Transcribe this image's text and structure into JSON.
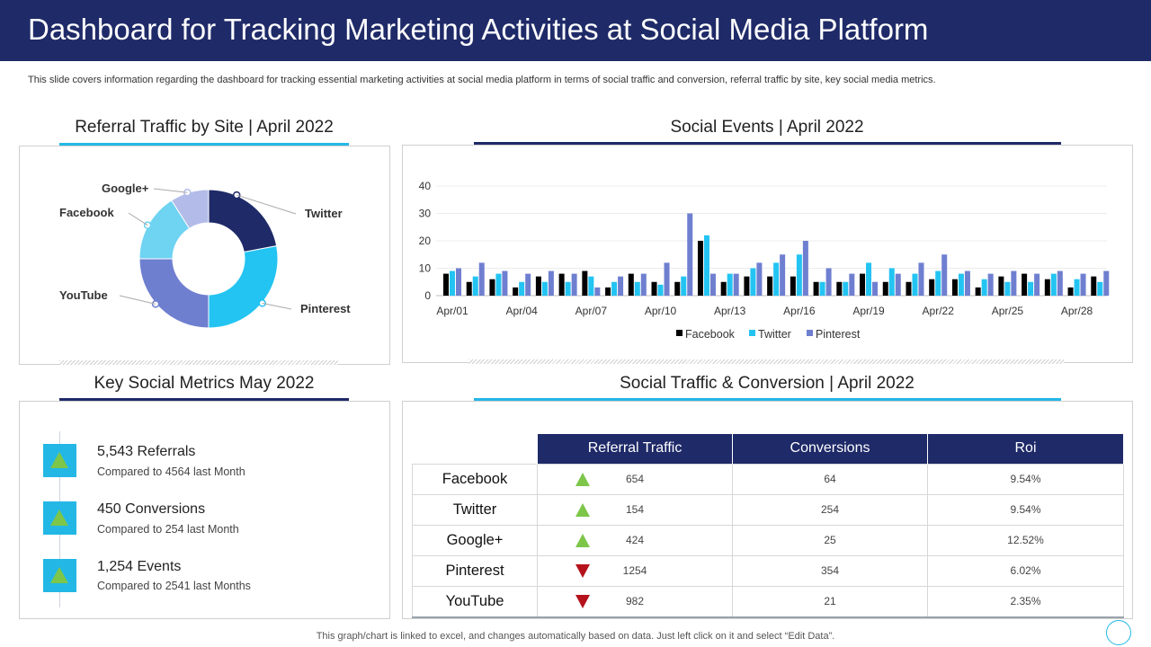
{
  "header": {
    "title": "Dashboard for Tracking Marketing Activities at Social Media Platform"
  },
  "subtitle": "This slide covers information regarding the dashboard for tracking essential marketing activities at social media platform in terms of social traffic and conversion, referral traffic by site, key social media metrics.",
  "sections": {
    "referral_title": "Referral Traffic by Site | April 2022",
    "events_title": "Social Events | April 2022",
    "metrics_title": "Key Social Metrics May 2022",
    "conversion_title": "Social Traffic & Conversion | April 2022"
  },
  "colors": {
    "navy": "#1f2a68",
    "cyan": "#23b7e5",
    "periwinkle": "#6f7fd0",
    "green": "#7dc64a",
    "red": "#b5121b"
  },
  "chart_data": [
    {
      "type": "pie",
      "title": "Referral Traffic by Site | April 2022",
      "labels": [
        "Twitter",
        "Pinterest",
        "YouTube",
        "Facebook",
        "Google+"
      ],
      "values": [
        22,
        28,
        25,
        16,
        9
      ],
      "colors": [
        "#1f2a68",
        "#23c4f2",
        "#6f7fd0",
        "#6fd3f2",
        "#b3bce8"
      ]
    },
    {
      "type": "bar",
      "title": "Social Events | April 2022",
      "ylim": [
        0,
        40
      ],
      "yticks": [
        0,
        10,
        20,
        30,
        40
      ],
      "categories": [
        "Apr/01",
        "Apr/02",
        "Apr/03",
        "Apr/04",
        "Apr/05",
        "Apr/06",
        "Apr/07",
        "Apr/08",
        "Apr/09",
        "Apr/10",
        "Apr/11",
        "Apr/12",
        "Apr/13",
        "Apr/14",
        "Apr/15",
        "Apr/16",
        "Apr/17",
        "Apr/18",
        "Apr/19",
        "Apr/20",
        "Apr/21",
        "Apr/22",
        "Apr/23",
        "Apr/24",
        "Apr/25",
        "Apr/26",
        "Apr/27",
        "Apr/28",
        "Apr/29"
      ],
      "xtick_labels": [
        "Apr/01",
        "Apr/04",
        "Apr/07",
        "Apr/10",
        "Apr/13",
        "Apr/16",
        "Apr/19",
        "Apr/22",
        "Apr/25",
        "Apr/28"
      ],
      "series": [
        {
          "name": "Facebook",
          "color": "#000000",
          "values": [
            8,
            5,
            6,
            3,
            7,
            8,
            9,
            3,
            8,
            5,
            5,
            20,
            5,
            7,
            7,
            7,
            5,
            5,
            8,
            5,
            5,
            6,
            6,
            3,
            7,
            8,
            6,
            3,
            7
          ]
        },
        {
          "name": "Twitter",
          "color": "#23c4f2",
          "values": [
            9,
            7,
            8,
            5,
            5,
            5,
            7,
            5,
            5,
            4,
            7,
            22,
            8,
            10,
            12,
            15,
            5,
            5,
            12,
            10,
            8,
            9,
            8,
            6,
            5,
            5,
            8,
            6,
            5
          ]
        },
        {
          "name": "Pinterest",
          "color": "#6f7fd0",
          "values": [
            10,
            12,
            9,
            8,
            9,
            8,
            3,
            7,
            8,
            12,
            30,
            8,
            8,
            12,
            15,
            20,
            10,
            8,
            5,
            8,
            12,
            15,
            9,
            8,
            9,
            8,
            9,
            8,
            9
          ]
        }
      ]
    }
  ],
  "metrics": [
    {
      "title": "5,543 Referrals",
      "sub": "Compared  to 4564  last Month"
    },
    {
      "title": "450 Conversions",
      "sub": "Compared  to 254  last Month"
    },
    {
      "title": "1,254 Events",
      "sub": "Compared  to 2541  last Months"
    }
  ],
  "conversion_table": {
    "headers": [
      "Referral Traffic",
      "Conversions",
      "Roi"
    ],
    "rows": [
      {
        "site": "Facebook",
        "trend": "up",
        "referral": "654",
        "conversions": "64",
        "roi": "9.54%"
      },
      {
        "site": "Twitter",
        "trend": "up",
        "referral": "154",
        "conversions": "254",
        "roi": "9.54%"
      },
      {
        "site": "Google+",
        "trend": "up",
        "referral": "424",
        "conversions": "25",
        "roi": "12.52%"
      },
      {
        "site": "Pinterest",
        "trend": "down",
        "referral": "1254",
        "conversions": "354",
        "roi": "6.02%"
      },
      {
        "site": "YouTube",
        "trend": "down",
        "referral": "982",
        "conversions": "21",
        "roi": "2.35%"
      }
    ]
  },
  "footer": "This graph/chart is linked to excel,  and changes automatically based on data. Just left click on it and select “Edit Data”."
}
